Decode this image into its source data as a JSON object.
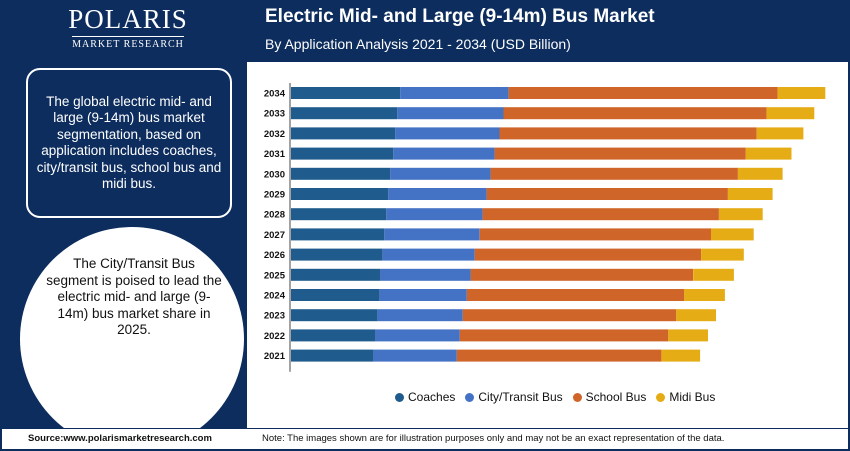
{
  "brand": {
    "name": "POLARIS",
    "tagline": "MARKET RESEARCH"
  },
  "header": {
    "title": "Electric Mid- and Large (9-14m) Bus Market",
    "subtitle": "By Application Analysis 2021 - 2034 (USD Billion)"
  },
  "sidebar": {
    "info_text": "The global electric mid- and large (9-14m) bus market segmentation, based on application includes coaches, city/transit bus, school bus and midi bus.",
    "highlight_text": "The City/Transit Bus segment is poised to lead the electric mid- and large (9-14m) bus market share in 2025."
  },
  "footer": {
    "source": "Source:www.polarismarketresearch.com",
    "note": "Note: The images shown are for illustration purposes only and may not be an exact representation of the data."
  },
  "colors": {
    "navy": "#0d2d5e",
    "Coaches": "#1f5b8c",
    "City/Transit Bus": "#4472c4",
    "School Bus": "#d0652a",
    "Midi Bus": "#e6ac16"
  },
  "chart_data": {
    "type": "bar",
    "orientation": "horizontal",
    "stacked": true,
    "categories": [
      "2034",
      "2033",
      "2032",
      "2031",
      "2030",
      "2029",
      "2028",
      "2027",
      "2026",
      "2025",
      "2024",
      "2023",
      "2022",
      "2021"
    ],
    "series": [
      {
        "name": "Coaches",
        "values": [
          110,
          107,
          105,
          103,
          100,
          98,
          96,
          94,
          92,
          90,
          89,
          87,
          85,
          83
        ]
      },
      {
        "name": "City/Transit Bus",
        "values": [
          109,
          107,
          105,
          102,
          101,
          99,
          97,
          96,
          93,
          91,
          88,
          86,
          85,
          84
        ]
      },
      {
        "name": "School Bus",
        "values": [
          271,
          265,
          259,
          253,
          249,
          243,
          238,
          233,
          228,
          224,
          219,
          215,
          210,
          206
        ]
      },
      {
        "name": "Midi Bus",
        "values": [
          48,
          48,
          47,
          46,
          45,
          45,
          44,
          43,
          43,
          41,
          41,
          40,
          40,
          39
        ]
      }
    ],
    "legend_position": "bottom",
    "grid": false,
    "xlabel": "",
    "ylabel": ""
  }
}
